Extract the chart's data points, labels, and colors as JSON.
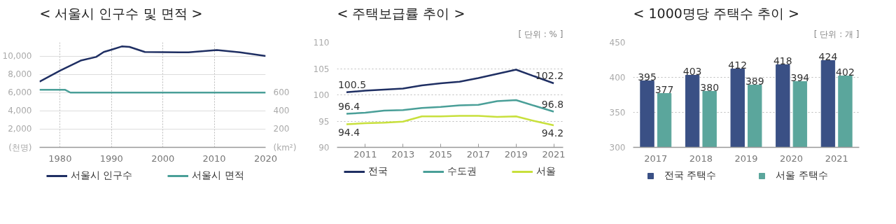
{
  "chart_data": [
    {
      "type": "line",
      "title": "< 서울시 인구수 및 면적 >",
      "xlim": [
        1976,
        2020
      ],
      "xticks": [
        1980,
        1990,
        2000,
        2010,
        2020
      ],
      "ylim": [
        0,
        11500
      ],
      "yticks": [
        {
          "value": 0,
          "label": "(천명)"
        },
        {
          "value": 2000,
          "label": "2,000"
        },
        {
          "value": 4000,
          "label": "4,000"
        },
        {
          "value": 6000,
          "label": "6,000"
        },
        {
          "value": 8000,
          "label": "8,000"
        },
        {
          "value": 10000,
          "label": "10,000"
        }
      ],
      "y2lim": [
        0,
        1150
      ],
      "y2ticks": [
        {
          "value": 0,
          "label": "(km²)"
        },
        200,
        400,
        600
      ],
      "grid": true,
      "legend": "bottom",
      "series": [
        {
          "name": "서울시 인구수",
          "color": "#1f2f63",
          "x": [
            1976,
            1980,
            1984,
            1987,
            1988.5,
            1990,
            1992,
            1993.5,
            1996.5,
            2005,
            2010.5,
            2015,
            2020
          ],
          "values": [
            7200,
            8400,
            9500,
            9900,
            10450,
            10700,
            11050,
            11000,
            10450,
            10400,
            10650,
            10400,
            10000
          ]
        },
        {
          "name": "서울시 면적",
          "color": "#4a9f98",
          "axis": "y2",
          "x": [
            1976,
            1981,
            1982,
            2020
          ],
          "values": [
            630,
            630,
            600,
            600
          ]
        }
      ]
    },
    {
      "type": "line",
      "title": "< 주택보급률 추이 >",
      "annotations": [
        "[ 단위 : % ]"
      ],
      "xlim": [
        2009.5,
        2021.5
      ],
      "xticks": [
        2011,
        2013,
        2015,
        2017,
        2019,
        2021
      ],
      "ylim": [
        90,
        110
      ],
      "yticks": [
        90,
        95,
        100,
        105,
        110
      ],
      "grid": "y",
      "legend": "bottom",
      "x": [
        2010,
        2011,
        2012,
        2013,
        2014,
        2015,
        2016,
        2017,
        2018,
        2019,
        2020,
        2021
      ],
      "series": [
        {
          "name": "전국",
          "color": "#1f2f63",
          "values": [
            100.5,
            100.8,
            101.0,
            101.2,
            101.8,
            102.2,
            102.5,
            103.2,
            104.0,
            104.8,
            103.5,
            102.2
          ],
          "value_labels": [
            "100.5",
            null,
            null,
            null,
            null,
            null,
            null,
            null,
            null,
            null,
            null,
            "102.2"
          ]
        },
        {
          "name": "수도권",
          "color": "#4a9f98",
          "values": [
            96.4,
            96.6,
            97.0,
            97.1,
            97.5,
            97.7,
            98.0,
            98.1,
            98.8,
            99.0,
            97.9,
            96.8
          ],
          "value_labels": [
            "96.4",
            null,
            null,
            null,
            null,
            null,
            null,
            null,
            null,
            null,
            null,
            "96.8"
          ]
        },
        {
          "name": "서울",
          "color": "#c8e03c",
          "values": [
            94.4,
            94.6,
            94.7,
            94.9,
            95.9,
            95.9,
            96.0,
            96.0,
            95.8,
            95.9,
            95.0,
            94.2
          ],
          "value_labels": [
            "94.4",
            null,
            null,
            null,
            null,
            null,
            null,
            null,
            null,
            null,
            null,
            "94.2"
          ]
        }
      ]
    },
    {
      "type": "bar",
      "title": "< 1000명당 주택수 추이 >",
      "annotations": [
        "[ 단위 : 개 ]"
      ],
      "categories": [
        "2017",
        "2018",
        "2019",
        "2020",
        "2021"
      ],
      "ylim": [
        300,
        450
      ],
      "yticks": [
        300,
        350,
        400,
        450
      ],
      "grid": "y",
      "legend": "bottom",
      "data_labels": true,
      "series": [
        {
          "name": "전국 주택수",
          "color": "#3a5085",
          "values": [
            395,
            403,
            412,
            418,
            424
          ]
        },
        {
          "name": "서울 주택수",
          "color": "#5ba69c",
          "values": [
            377,
            380,
            389,
            394,
            402
          ]
        }
      ]
    }
  ]
}
